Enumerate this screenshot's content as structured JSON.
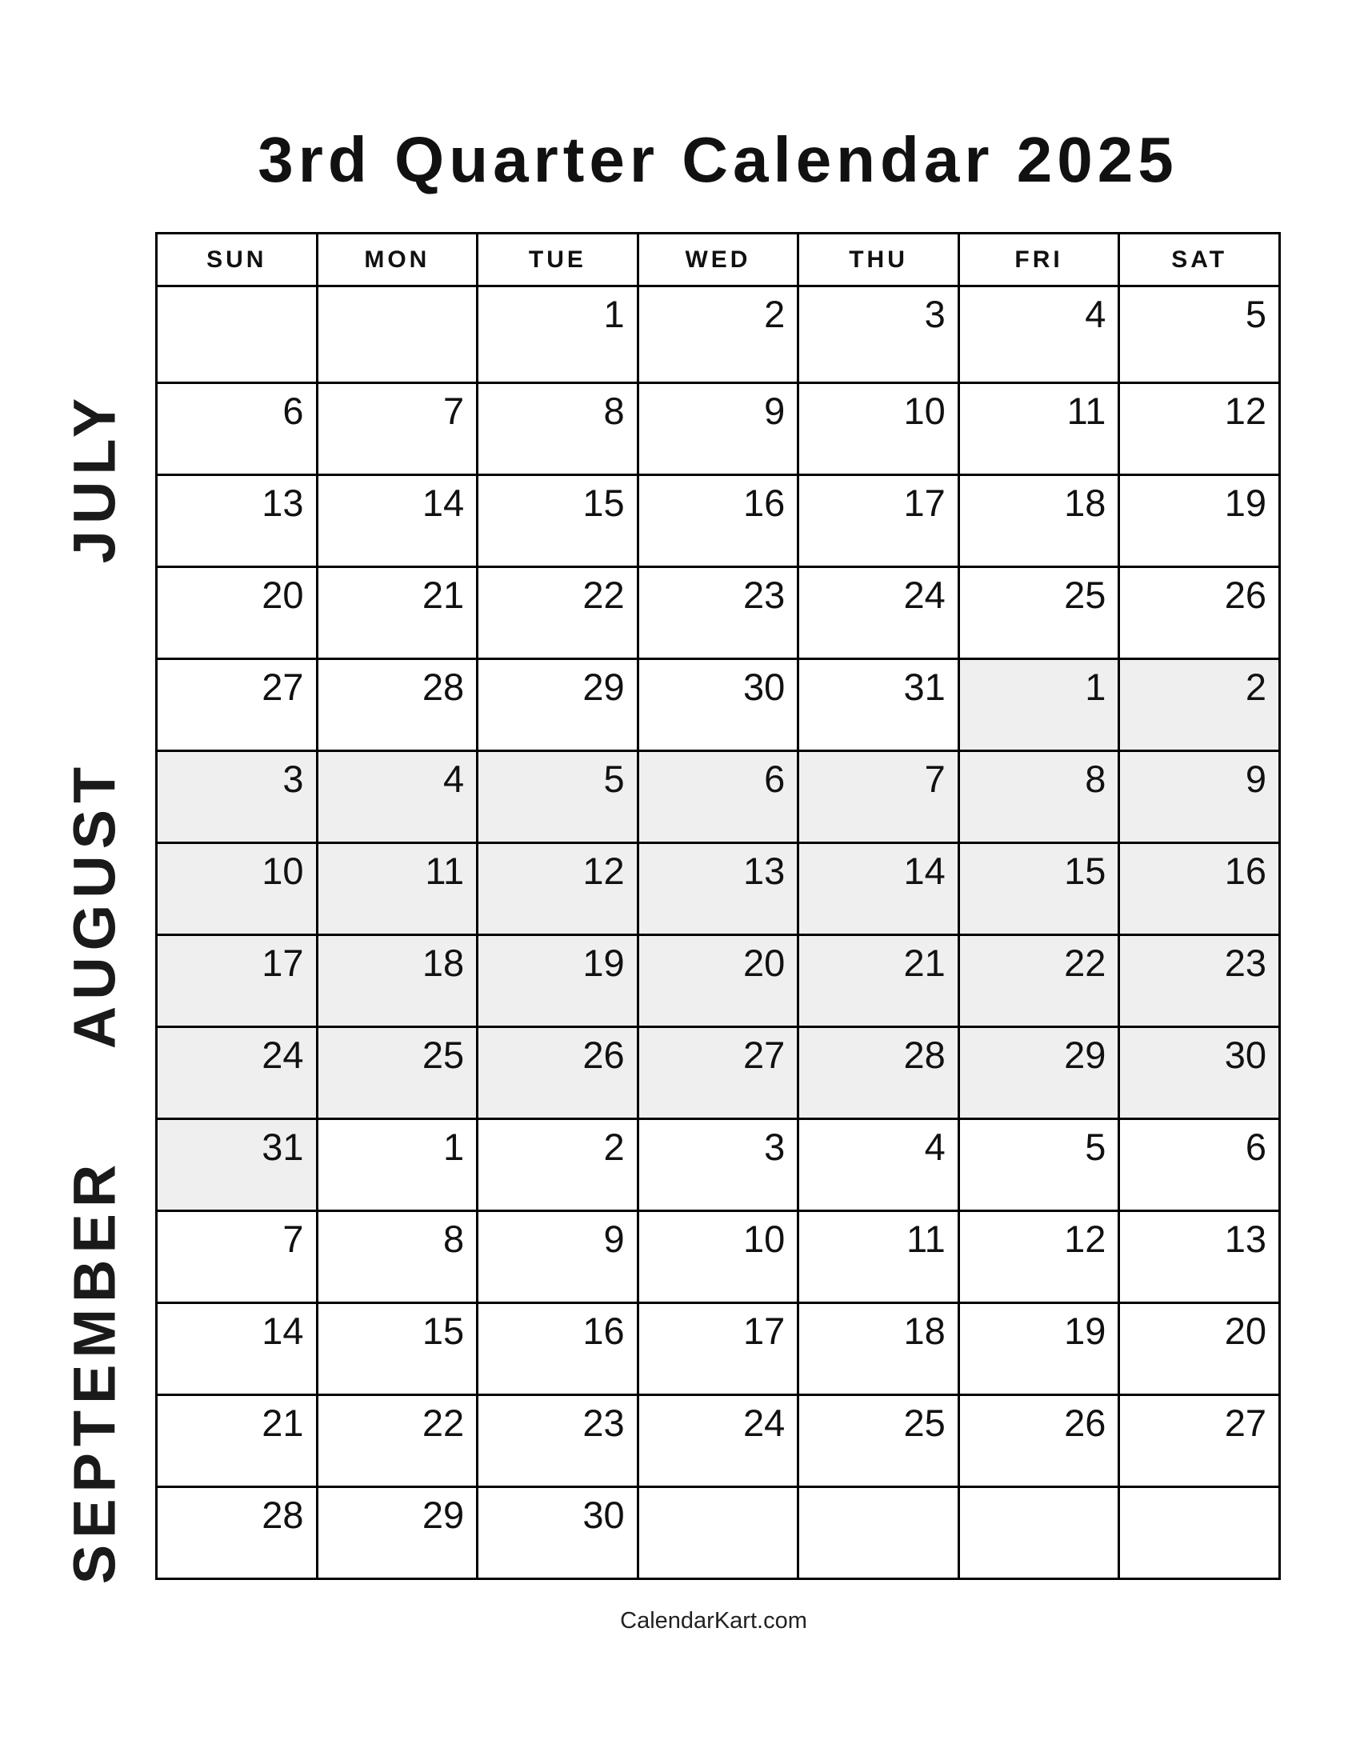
{
  "title": "3rd Quarter Calendar 2025",
  "weekdays": [
    "SUN",
    "MON",
    "TUE",
    "WED",
    "THU",
    "FRI",
    "SAT"
  ],
  "months": [
    "JULY",
    "AUGUST",
    "SEPTEMBER"
  ],
  "shade_color": "#efefef",
  "shaded_month": "aug",
  "weeks": [
    [
      [
        "",
        "jul"
      ],
      [
        "",
        "jul"
      ],
      [
        "1",
        "jul"
      ],
      [
        "2",
        "jul"
      ],
      [
        "3",
        "jul"
      ],
      [
        "4",
        "jul"
      ],
      [
        "5",
        "jul"
      ]
    ],
    [
      [
        "6",
        "jul"
      ],
      [
        "7",
        "jul"
      ],
      [
        "8",
        "jul"
      ],
      [
        "9",
        "jul"
      ],
      [
        "10",
        "jul"
      ],
      [
        "11",
        "jul"
      ],
      [
        "12",
        "jul"
      ]
    ],
    [
      [
        "13",
        "jul"
      ],
      [
        "14",
        "jul"
      ],
      [
        "15",
        "jul"
      ],
      [
        "16",
        "jul"
      ],
      [
        "17",
        "jul"
      ],
      [
        "18",
        "jul"
      ],
      [
        "19",
        "jul"
      ]
    ],
    [
      [
        "20",
        "jul"
      ],
      [
        "21",
        "jul"
      ],
      [
        "22",
        "jul"
      ],
      [
        "23",
        "jul"
      ],
      [
        "24",
        "jul"
      ],
      [
        "25",
        "jul"
      ],
      [
        "26",
        "jul"
      ]
    ],
    [
      [
        "27",
        "jul"
      ],
      [
        "28",
        "jul"
      ],
      [
        "29",
        "jul"
      ],
      [
        "30",
        "jul"
      ],
      [
        "31",
        "jul"
      ],
      [
        "1",
        "aug"
      ],
      [
        "2",
        "aug"
      ]
    ],
    [
      [
        "3",
        "aug"
      ],
      [
        "4",
        "aug"
      ],
      [
        "5",
        "aug"
      ],
      [
        "6",
        "aug"
      ],
      [
        "7",
        "aug"
      ],
      [
        "8",
        "aug"
      ],
      [
        "9",
        "aug"
      ]
    ],
    [
      [
        "10",
        "aug"
      ],
      [
        "11",
        "aug"
      ],
      [
        "12",
        "aug"
      ],
      [
        "13",
        "aug"
      ],
      [
        "14",
        "aug"
      ],
      [
        "15",
        "aug"
      ],
      [
        "16",
        "aug"
      ]
    ],
    [
      [
        "17",
        "aug"
      ],
      [
        "18",
        "aug"
      ],
      [
        "19",
        "aug"
      ],
      [
        "20",
        "aug"
      ],
      [
        "21",
        "aug"
      ],
      [
        "22",
        "aug"
      ],
      [
        "23",
        "aug"
      ]
    ],
    [
      [
        "24",
        "aug"
      ],
      [
        "25",
        "aug"
      ],
      [
        "26",
        "aug"
      ],
      [
        "27",
        "aug"
      ],
      [
        "28",
        "aug"
      ],
      [
        "29",
        "aug"
      ],
      [
        "30",
        "aug"
      ]
    ],
    [
      [
        "31",
        "aug"
      ],
      [
        "1",
        "sep"
      ],
      [
        "2",
        "sep"
      ],
      [
        "3",
        "sep"
      ],
      [
        "4",
        "sep"
      ],
      [
        "5",
        "sep"
      ],
      [
        "6",
        "sep"
      ]
    ],
    [
      [
        "7",
        "sep"
      ],
      [
        "8",
        "sep"
      ],
      [
        "9",
        "sep"
      ],
      [
        "10",
        "sep"
      ],
      [
        "11",
        "sep"
      ],
      [
        "12",
        "sep"
      ],
      [
        "13",
        "sep"
      ]
    ],
    [
      [
        "14",
        "sep"
      ],
      [
        "15",
        "sep"
      ],
      [
        "16",
        "sep"
      ],
      [
        "17",
        "sep"
      ],
      [
        "18",
        "sep"
      ],
      [
        "19",
        "sep"
      ],
      [
        "20",
        "sep"
      ]
    ],
    [
      [
        "21",
        "sep"
      ],
      [
        "22",
        "sep"
      ],
      [
        "23",
        "sep"
      ],
      [
        "24",
        "sep"
      ],
      [
        "25",
        "sep"
      ],
      [
        "26",
        "sep"
      ],
      [
        "27",
        "sep"
      ]
    ],
    [
      [
        "28",
        "sep"
      ],
      [
        "29",
        "sep"
      ],
      [
        "30",
        "sep"
      ],
      [
        "",
        "sep"
      ],
      [
        "",
        "sep"
      ],
      [
        "",
        "sep"
      ],
      [
        "",
        "sep"
      ]
    ]
  ],
  "footer": "CalendarKart.com"
}
